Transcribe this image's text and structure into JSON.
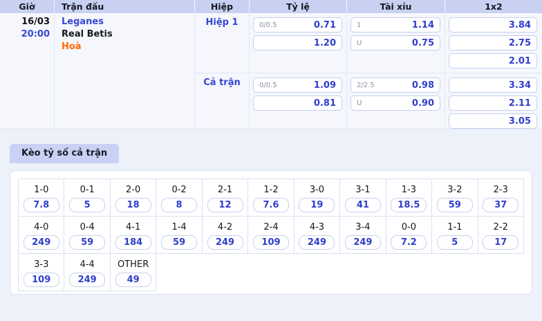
{
  "colors": {
    "accent_blue": "#3647d2",
    "odds_blue": "#2e3ecc",
    "draw_orange": "#ff6a00",
    "header_bg": "#c9d1f2",
    "tab_bg": "#c9d2f4",
    "table_bg": "#f5f7fd",
    "page_bg": "#edf1fa",
    "box_border": "#c6cfee",
    "grid_border": "#dbe0f1"
  },
  "odds_table": {
    "headers": [
      "Giờ",
      "Trận đấu",
      "Hiệp",
      "Tỷ lệ",
      "Tài xỉu",
      "1x2"
    ],
    "match": {
      "date": "16/03",
      "time": "20:00",
      "home": "Leganes",
      "away": "Real Betis",
      "draw_label": "Hoà"
    },
    "periods": [
      {
        "label": "Hiệp 1",
        "handicap": [
          {
            "line": "0/0.5",
            "odds": "0.71"
          },
          {
            "line": "",
            "odds": "1.20"
          }
        ],
        "over_under": [
          {
            "line": "1",
            "odds": "1.14"
          },
          {
            "line": "U",
            "odds": "0.75"
          }
        ],
        "one_x_two": [
          "3.84",
          "2.75",
          "2.01"
        ]
      },
      {
        "label": "Cả trận",
        "handicap": [
          {
            "line": "0/0.5",
            "odds": "1.09"
          },
          {
            "line": "",
            "odds": "0.81"
          }
        ],
        "over_under": [
          {
            "line": "2/2.5",
            "odds": "0.98"
          },
          {
            "line": "U",
            "odds": "0.90"
          }
        ],
        "one_x_two": [
          "3.34",
          "2.11",
          "3.05"
        ]
      }
    ]
  },
  "score_section": {
    "title": "Kèo tỷ số cả trận",
    "columns": 11,
    "rows": [
      [
        {
          "score": "1-0",
          "odds": "7.8"
        },
        {
          "score": "0-1",
          "odds": "5"
        },
        {
          "score": "2-0",
          "odds": "18"
        },
        {
          "score": "0-2",
          "odds": "8"
        },
        {
          "score": "2-1",
          "odds": "12"
        },
        {
          "score": "1-2",
          "odds": "7.6"
        },
        {
          "score": "3-0",
          "odds": "19"
        },
        {
          "score": "3-1",
          "odds": "41"
        },
        {
          "score": "1-3",
          "odds": "18.5"
        },
        {
          "score": "3-2",
          "odds": "59"
        },
        {
          "score": "2-3",
          "odds": "37"
        }
      ],
      [
        {
          "score": "4-0",
          "odds": "249"
        },
        {
          "score": "0-4",
          "odds": "59"
        },
        {
          "score": "4-1",
          "odds": "184"
        },
        {
          "score": "1-4",
          "odds": "59"
        },
        {
          "score": "4-2",
          "odds": "249"
        },
        {
          "score": "2-4",
          "odds": "109"
        },
        {
          "score": "4-3",
          "odds": "249"
        },
        {
          "score": "3-4",
          "odds": "249"
        },
        {
          "score": "0-0",
          "odds": "7.2"
        },
        {
          "score": "1-1",
          "odds": "5"
        },
        {
          "score": "2-2",
          "odds": "17"
        }
      ],
      [
        {
          "score": "3-3",
          "odds": "109"
        },
        {
          "score": "4-4",
          "odds": "249"
        },
        {
          "score": "OTHER",
          "odds": "49"
        }
      ]
    ]
  }
}
